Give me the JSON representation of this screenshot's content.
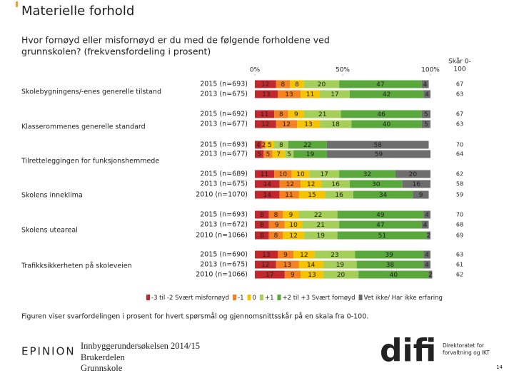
{
  "chart_data": {
    "type": "bar",
    "orientation": "horizontal",
    "stacked": true,
    "title": "Materielle forhold",
    "subtitle_lines": [
      "Hvor fornøyd eller misfornøyd er du med de følgende forholdene ved",
      "grunnskolen? (frekvensfordeling i prosent)"
    ],
    "score_header_lines": [
      "Skår 0-",
      "100"
    ],
    "xlim": [
      0,
      100
    ],
    "xticks": [
      {
        "value": 0,
        "label": "0%"
      },
      {
        "value": 50,
        "label": "50%"
      },
      {
        "value": 100,
        "label": "100%"
      }
    ],
    "series": [
      {
        "name": "-3 til -2 Svært misfornøyd",
        "color": "#c0282d"
      },
      {
        "name": "-1",
        "color": "#f58220"
      },
      {
        "name": "0",
        "color": "#f4c400"
      },
      {
        "name": "+1",
        "color": "#a6cf5a"
      },
      {
        "name": "+2 til +3 Svært fornøyd",
        "color": "#5aa83c"
      },
      {
        "name": "Vet ikke/ Har ikke erfaring",
        "color": "#6d6d6d"
      }
    ],
    "groups": [
      {
        "label": "Skolebygningens/-enes generelle tilstand",
        "rows": [
          {
            "label": "2015 (n=693)",
            "values": [
              12,
              8,
              8,
              20,
              47,
              4
            ],
            "score": 67
          },
          {
            "label": "2013 (n=675)",
            "values": [
              13,
              13,
              11,
              17,
              42,
              4
            ],
            "score": 63
          }
        ]
      },
      {
        "label": "Klasserommenes generelle standard",
        "rows": [
          {
            "label": "2015 (n=692)",
            "values": [
              11,
              8,
              9,
              21,
              46,
              5
            ],
            "score": 67
          },
          {
            "label": "2013 (n=677)",
            "values": [
              12,
              12,
              13,
              18,
              40,
              5
            ],
            "score": 63
          }
        ]
      },
      {
        "label": "Tilretteleggingen for funksjonshemmede",
        "rows": [
          {
            "label": "2015 (n=693)",
            "values": [
              4,
              2,
              5,
              8,
              22,
              58
            ],
            "score": 70
          },
          {
            "label": "2013 (n=677)",
            "values": [
              5,
              5,
              7,
              5,
              19,
              59
            ],
            "score": 64
          }
        ]
      },
      {
        "label": "Skolens inneklima",
        "rows": [
          {
            "label": "2015 (n=689)",
            "values": [
              11,
              10,
              10,
              17,
              32,
              20
            ],
            "score": 62
          },
          {
            "label": "2013 (n=675)",
            "values": [
              14,
              12,
              12,
              16,
              30,
              16
            ],
            "score": 58
          },
          {
            "label": "2010 (n=1070)",
            "values": [
              14,
              11,
              15,
              16,
              34,
              9
            ],
            "score": 59
          }
        ]
      },
      {
        "label": "Skolens uteareal",
        "rows": [
          {
            "label": "2015 (n=693)",
            "values": [
              8,
              8,
              9,
              22,
              49,
              4
            ],
            "score": 70
          },
          {
            "label": "2013 (n=672)",
            "values": [
              8,
              9,
              10,
              21,
              47,
              4
            ],
            "score": 68
          },
          {
            "label": "2010 (n=1066)",
            "values": [
              8,
              8,
              12,
              19,
              51,
              2
            ],
            "score": 69
          }
        ]
      },
      {
        "label": "Trafikksikkerheten på skoleveien",
        "rows": [
          {
            "label": "2015 (n=690)",
            "values": [
              13,
              9,
              12,
              23,
              39,
              4
            ],
            "score": 63
          },
          {
            "label": "2013 (n=675)",
            "values": [
              12,
              13,
              14,
              19,
              38,
              4
            ],
            "score": 61
          },
          {
            "label": "2010 (n=1066)",
            "values": [
              17,
              9,
              13,
              20,
              40,
              2
            ],
            "score": 62
          }
        ]
      }
    ],
    "footnote": "Figuren viser svarfordelingen i prosent for hvert spørsmål og gjennomsnittsskår på en skala fra 0-100."
  },
  "footer": {
    "logo_left": "EPINION",
    "survey_lines": [
      "Innbyggerundersøkelsen 2014/15",
      "Brukerdelen",
      "Grunnskole"
    ],
    "logo_right": "difi",
    "logo_right_tagline": [
      "Direktoratet for",
      "forvaltning og IKT"
    ],
    "page_number": "14"
  }
}
